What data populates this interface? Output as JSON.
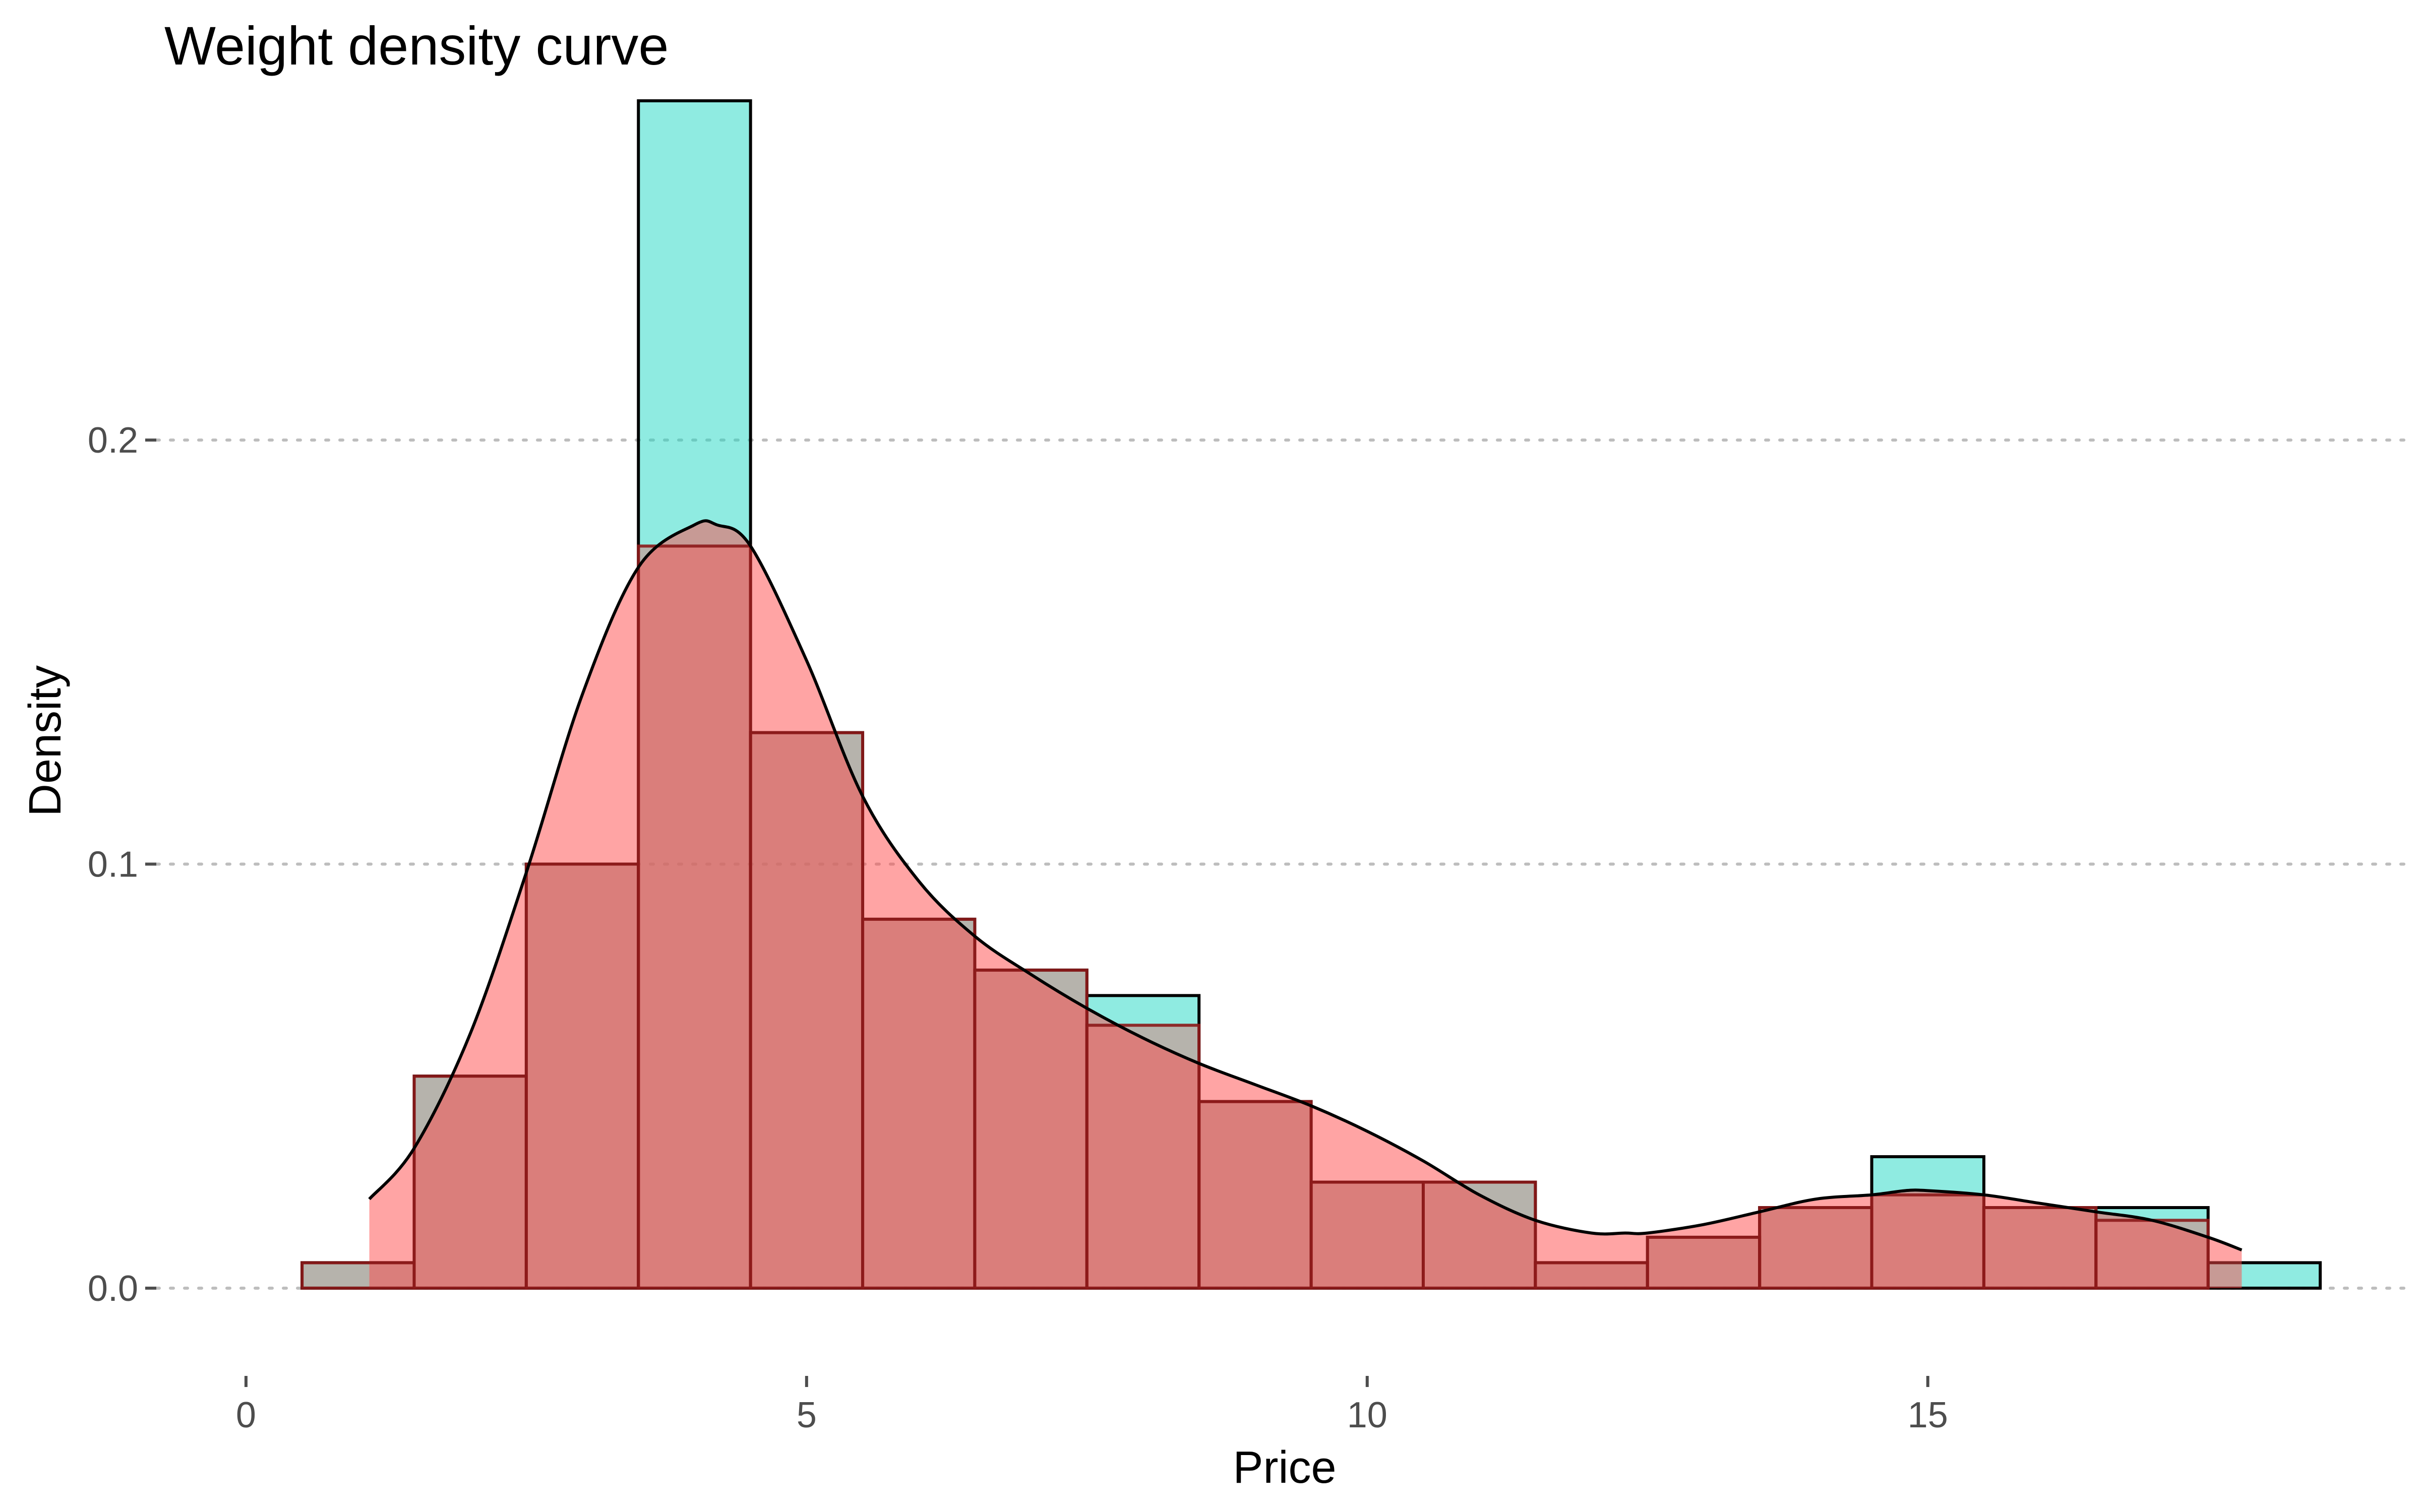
{
  "chart_data": {
    "type": "histogram",
    "title": "Weight density curve",
    "xlabel": "Price",
    "ylabel": "Density",
    "xlim": [
      -0.8,
      19.3
    ],
    "ylim": [
      -0.01,
      0.28
    ],
    "x_ticks": [
      0,
      5,
      10,
      15
    ],
    "x_tick_labels": [
      "0",
      "5",
      "10",
      "15"
    ],
    "y_ticks": [
      0.0,
      0.1,
      0.2
    ],
    "y_tick_labels": [
      "0.0",
      "0.1",
      "0.2"
    ],
    "grid": "horizontal dotted major lines",
    "colors": {
      "unweighted_fill": "#1fd8c4",
      "weighted_fill": "#ff4a4a",
      "weighted_outline": "#8b1a1a",
      "curve": "#000000"
    },
    "series": [
      {
        "kind": "bars",
        "bin_width": 1,
        "centers": [
          1,
          2,
          3,
          4,
          5,
          6,
          7,
          8,
          9,
          10,
          11,
          12,
          13,
          14,
          15,
          16,
          17,
          18
        ],
        "values": [
          0.006,
          0.05,
          0.1,
          0.28,
          0.131,
          0.087,
          0.075,
          0.069,
          0.044,
          0.025,
          0.025,
          0.006,
          0.012,
          0.019,
          0.031,
          0.019,
          0.019,
          0.006
        ]
      },
      {
        "kind": "bars",
        "bin_width": 1,
        "centers": [
          1,
          2,
          3,
          4,
          5,
          6,
          7,
          8,
          9,
          10,
          11,
          12,
          13,
          14,
          15,
          16,
          17
        ],
        "values": [
          0.006,
          0.05,
          0.1,
          0.175,
          0.131,
          0.087,
          0.075,
          0.062,
          0.044,
          0.025,
          0.025,
          0.006,
          0.012,
          0.019,
          0.022,
          0.019,
          0.016
        ]
      },
      {
        "kind": "density",
        "x": [
          1.1,
          1.5,
          2.0,
          2.5,
          3.0,
          3.5,
          4.0,
          4.2,
          4.5,
          5.0,
          5.5,
          6.0,
          6.5,
          7.0,
          7.5,
          8.0,
          8.5,
          9.0,
          9.5,
          10.0,
          10.5,
          11.0,
          11.5,
          12.0,
          12.3,
          12.5,
          13.0,
          13.5,
          14.0,
          14.5,
          14.8,
          15.0,
          15.5,
          16.0,
          16.5,
          17.0,
          17.5,
          17.8
        ],
        "y": [
          0.021,
          0.033,
          0.06,
          0.098,
          0.14,
          0.17,
          0.18,
          0.18,
          0.175,
          0.148,
          0.116,
          0.096,
          0.083,
          0.074,
          0.066,
          0.059,
          0.053,
          0.048,
          0.043,
          0.037,
          0.03,
          0.022,
          0.016,
          0.013,
          0.013,
          0.013,
          0.015,
          0.018,
          0.021,
          0.022,
          0.023,
          0.023,
          0.022,
          0.02,
          0.018,
          0.016,
          0.012,
          0.009
        ]
      }
    ]
  }
}
